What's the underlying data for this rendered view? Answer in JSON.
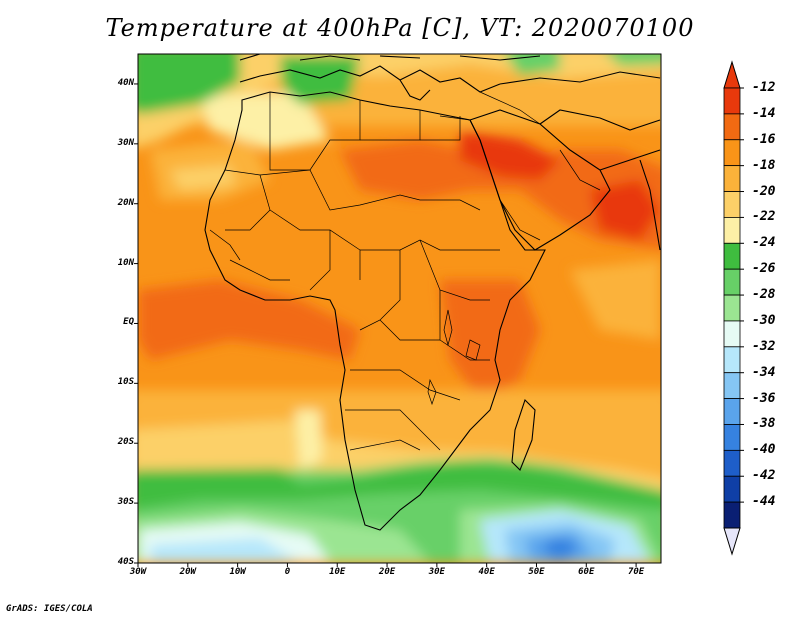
{
  "title": "Temperature at 400hPa [C], VT: 2020070100",
  "credit": "GrADS: IGES/COLA",
  "map": {
    "lon_range": [
      -30,
      75
    ],
    "lat_range": [
      -40,
      45
    ],
    "lon_ticks": [
      {
        "value": -30,
        "label": "30W"
      },
      {
        "value": -20,
        "label": "20W"
      },
      {
        "value": -10,
        "label": "10W"
      },
      {
        "value": 0,
        "label": "0"
      },
      {
        "value": 10,
        "label": "10E"
      },
      {
        "value": 20,
        "label": "20E"
      },
      {
        "value": 30,
        "label": "30E"
      },
      {
        "value": 40,
        "label": "40E"
      },
      {
        "value": 50,
        "label": "50E"
      },
      {
        "value": 60,
        "label": "60E"
      },
      {
        "value": 70,
        "label": "70E"
      }
    ],
    "lat_ticks": [
      {
        "value": 40,
        "label": "40N"
      },
      {
        "value": 30,
        "label": "30N"
      },
      {
        "value": 20,
        "label": "20N"
      },
      {
        "value": 10,
        "label": "10N"
      },
      {
        "value": 0,
        "label": "EQ"
      },
      {
        "value": -10,
        "label": "10S"
      },
      {
        "value": -20,
        "label": "20S"
      },
      {
        "value": -30,
        "label": "30S"
      },
      {
        "value": -40,
        "label": "40S"
      }
    ]
  },
  "colorbar": {
    "levels": [
      "-12",
      "-14",
      "-16",
      "-18",
      "-20",
      "-22",
      "-24",
      "-26",
      "-28",
      "-30",
      "-32",
      "-34",
      "-36",
      "-38",
      "-40",
      "-42",
      "-44"
    ],
    "colors": [
      "#e8390c",
      "#f26a12",
      "#f99418",
      "#fbb23a",
      "#fcd068",
      "#fdf0a6",
      "#3fbd3f",
      "#67d067",
      "#9be592",
      "#e6fbf5",
      "#b6e7fb",
      "#85c6f4",
      "#5aa4ec",
      "#3682e0",
      "#1e5ec9",
      "#0f3fa6",
      "#0a1f73"
    ],
    "lower_triangle": "#e6e6fa"
  }
}
